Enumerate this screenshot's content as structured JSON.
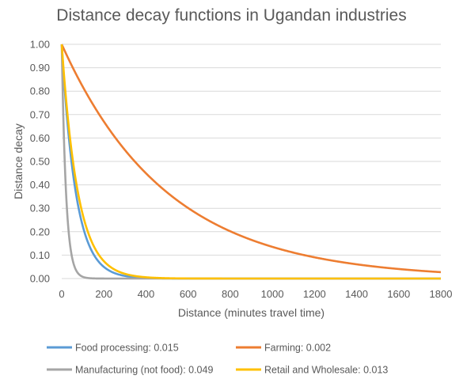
{
  "chart_data": {
    "type": "line",
    "title": "Distance decay functions in Ugandan industries",
    "xlabel": "Distance (minutes travel time)",
    "ylabel": "Distance decay",
    "xlim": [
      0,
      1800
    ],
    "ylim": [
      0,
      1
    ],
    "x_ticks": [
      "0",
      "200",
      "400",
      "600",
      "800",
      "1000",
      "1200",
      "1400",
      "1600",
      "1800"
    ],
    "y_ticks": [
      "0.00",
      "0.10",
      "0.20",
      "0.30",
      "0.40",
      "0.50",
      "0.60",
      "0.70",
      "0.80",
      "0.90",
      "1.00"
    ],
    "grid": "horizontal",
    "legend_position": "bottom",
    "function": "y = exp(-b * x)",
    "series": [
      {
        "name": "Food processing: 0.015",
        "decay": 0.015,
        "color": "#5B9BD5"
      },
      {
        "name": "Farming: 0.002",
        "decay": 0.002,
        "color": "#ED7D31"
      },
      {
        "name": "Manufacturing (not food): 0.049",
        "decay": 0.049,
        "color": "#A5A5A5"
      },
      {
        "name": "Retail and Wholesale: 0.013",
        "decay": 0.013,
        "color": "#FFC000"
      }
    ]
  }
}
